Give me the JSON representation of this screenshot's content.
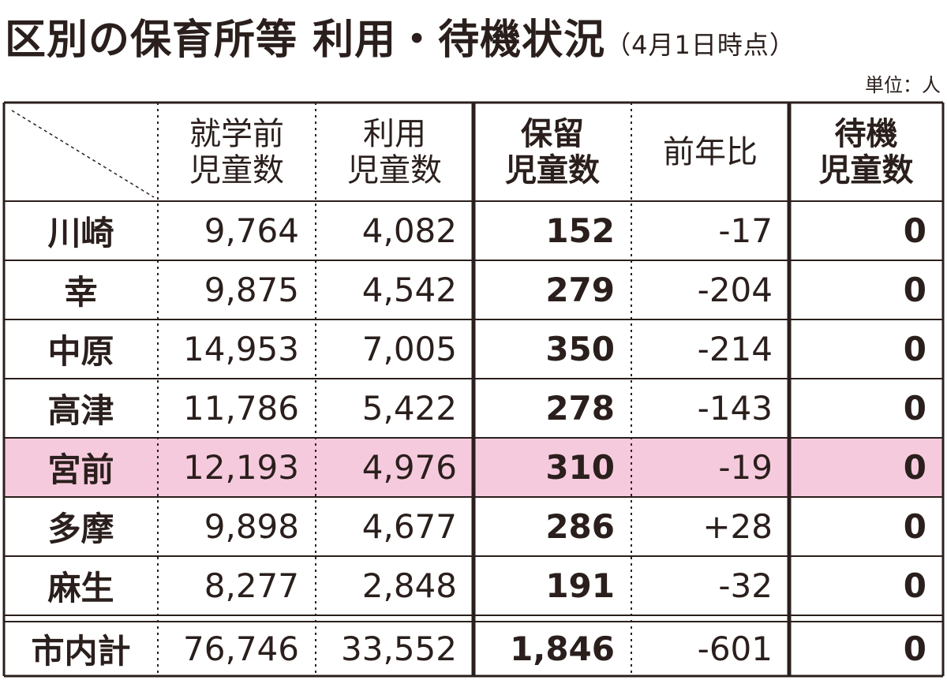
{
  "header": {
    "title": "区別の保育所等 利用・待機状況",
    "date_note": "（4月1日時点）",
    "unit": "単位：人"
  },
  "table": {
    "columns": [
      [
        "就学前",
        "児童数"
      ],
      [
        "利用",
        "児童数"
      ],
      [
        "保留",
        "児童数"
      ],
      [
        "前年比"
      ],
      [
        "待機",
        "児童数"
      ]
    ],
    "rows": [
      [
        "川崎",
        "9,764",
        "4,082",
        "152",
        "-17",
        "0"
      ],
      [
        "幸",
        "9,875",
        "4,542",
        "279",
        "-204",
        "0"
      ],
      [
        "中原",
        "14,953",
        "7,005",
        "350",
        "-214",
        "0"
      ],
      [
        "高津",
        "11,786",
        "5,422",
        "278",
        "-143",
        "0"
      ],
      [
        "宮前",
        "12,193",
        "4,976",
        "310",
        "-19",
        "0"
      ],
      [
        "多摩",
        "9,898",
        "4,677",
        "286",
        "+28",
        "0"
      ],
      [
        "麻生",
        "8,277",
        "2,848",
        "191",
        "-32",
        "0"
      ]
    ],
    "total": [
      "市内計",
      "76,746",
      "33,552",
      "1,846",
      "-601",
      "0"
    ],
    "highlight_row": 4
  }
}
